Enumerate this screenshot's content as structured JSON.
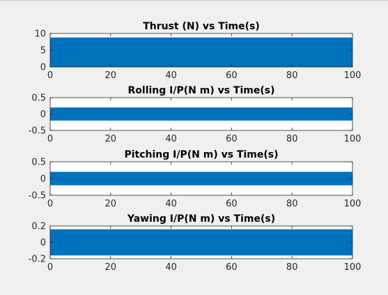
{
  "figure": {
    "background": "#f0f0f0",
    "axes_background": "#ffffff",
    "series_color": "#0072bd",
    "axis_color": "#262626"
  },
  "chart_data": [
    {
      "type": "area",
      "title": "Thrust (N) vs Time(s)",
      "xlabel": "",
      "ylabel": "",
      "xlim": [
        0,
        100
      ],
      "ylim": [
        0,
        10
      ],
      "xticks": [
        0,
        20,
        40,
        60,
        80,
        100
      ],
      "xtick_labels": [
        "0",
        "20",
        "40",
        "60",
        "80",
        "100"
      ],
      "yticks": [
        0,
        5,
        10
      ],
      "ytick_labels": [
        "0",
        "5",
        "10"
      ],
      "grid": false,
      "series": [
        {
          "x": [
            0,
            100
          ],
          "min": [
            0,
            0
          ],
          "max": [
            8.8,
            8.8
          ]
        }
      ]
    },
    {
      "type": "area",
      "title": "Rolling I/P(N m) vs Time(s)",
      "xlabel": "",
      "ylabel": "",
      "xlim": [
        0,
        100
      ],
      "ylim": [
        -0.5,
        0.5
      ],
      "xticks": [
        0,
        20,
        40,
        60,
        80,
        100
      ],
      "xtick_labels": [
        "0",
        "20",
        "40",
        "60",
        "80",
        "100"
      ],
      "yticks": [
        -0.5,
        0,
        0.5
      ],
      "ytick_labels": [
        "-0.5",
        "0",
        "0.5"
      ],
      "grid": false,
      "series": [
        {
          "x": [
            0,
            100
          ],
          "min": [
            -0.2,
            -0.2
          ],
          "max": [
            0.2,
            0.2
          ]
        }
      ]
    },
    {
      "type": "area",
      "title": "Pitching I/P(N m) vs Time(s)",
      "xlabel": "",
      "ylabel": "",
      "xlim": [
        0,
        100
      ],
      "ylim": [
        -0.5,
        0.5
      ],
      "xticks": [
        0,
        20,
        40,
        60,
        80,
        100
      ],
      "xtick_labels": [
        "0",
        "20",
        "40",
        "60",
        "80",
        "100"
      ],
      "yticks": [
        -0.5,
        0,
        0.5
      ],
      "ytick_labels": [
        "-0.5",
        "0",
        "0.5"
      ],
      "grid": false,
      "series": [
        {
          "x": [
            0,
            100
          ],
          "min": [
            -0.2,
            -0.2
          ],
          "max": [
            0.2,
            0.2
          ]
        }
      ]
    },
    {
      "type": "area",
      "title": "Yawing I/P(N m) vs Time(s)",
      "xlabel": "",
      "ylabel": "",
      "xlim": [
        0,
        100
      ],
      "ylim": [
        -0.2,
        0.2
      ],
      "xticks": [
        0,
        20,
        40,
        60,
        80,
        100
      ],
      "xtick_labels": [
        "0",
        "20",
        "40",
        "60",
        "80",
        "100"
      ],
      "yticks": [
        -0.2,
        0,
        0.2
      ],
      "ytick_labels": [
        "-0.2",
        "0",
        "0.2"
      ],
      "grid": false,
      "series": [
        {
          "x": [
            0,
            100
          ],
          "min": [
            -0.16,
            -0.16
          ],
          "max": [
            0.16,
            0.16
          ]
        }
      ]
    }
  ]
}
